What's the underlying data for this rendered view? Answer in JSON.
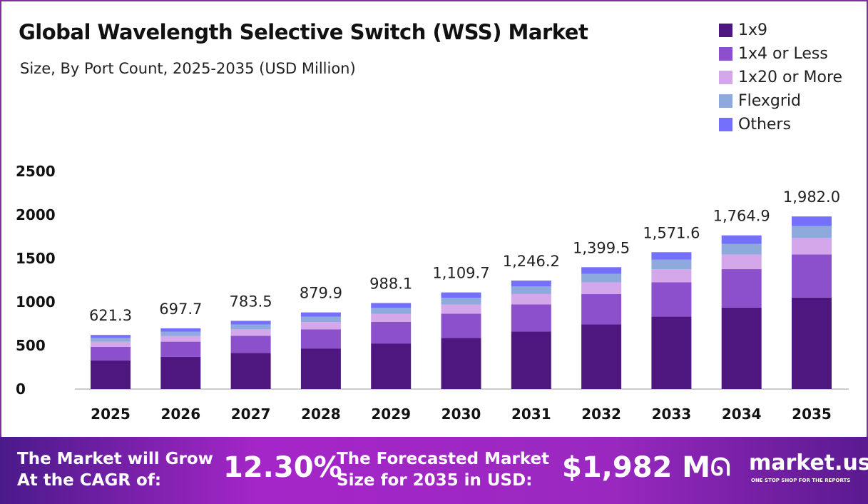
{
  "chart_data": {
    "type": "bar",
    "stacked": true,
    "title": "Global Wavelength Selective Switch (WSS) Market",
    "subtitle": "Size, By Port Count, 2025-2035 (USD Million)",
    "categories": [
      "2025",
      "2026",
      "2027",
      "2028",
      "2029",
      "2030",
      "2031",
      "2032",
      "2033",
      "2034",
      "2035"
    ],
    "totals": [
      "621.3",
      "697.7",
      "783.5",
      "879.9",
      "988.1",
      "1,109.7",
      "1,246.2",
      "1,399.5",
      "1,571.6",
      "1,764.9",
      "1,982.0"
    ],
    "series": [
      {
        "name": "1x9",
        "color": "#4e1780",
        "values": [
          329.3,
          369.8,
          415.3,
          466.3,
          523.7,
          588.1,
          660.5,
          741.7,
          833.0,
          935.4,
          1050.5
        ]
      },
      {
        "name": "1x4 or Less",
        "color": "#8c50cc",
        "values": [
          155.3,
          174.4,
          195.9,
          220.0,
          247.0,
          277.4,
          311.6,
          349.9,
          392.9,
          441.2,
          495.5
        ]
      },
      {
        "name": "1x20 or More",
        "color": "#d3a7ea",
        "values": [
          59.0,
          66.3,
          74.4,
          83.6,
          93.9,
          105.4,
          118.4,
          133.0,
          149.3,
          167.7,
          188.3
        ]
      },
      {
        "name": "Flexgrid",
        "color": "#8eaadc",
        "values": [
          43.5,
          48.8,
          54.8,
          61.6,
          69.2,
          77.7,
          87.2,
          98.0,
          110.0,
          123.5,
          138.7
        ]
      },
      {
        "name": "Others",
        "color": "#7470fb",
        "values": [
          34.2,
          38.4,
          43.1,
          48.4,
          54.3,
          61.1,
          68.5,
          76.9,
          86.4,
          97.1,
          109.0
        ]
      }
    ],
    "yticks": [
      "0",
      "500",
      "1000",
      "1500",
      "2000",
      "2500"
    ],
    "ylim": [
      0,
      2500
    ],
    "grid": false,
    "legend": "top-right"
  },
  "banner": {
    "cagr_label_1": "The Market will Grow",
    "cagr_label_2": "At the CAGR of:",
    "cagr_value": "12.30%",
    "forecast_label_1": "The Forecasted Market",
    "forecast_label_2": "Size for 2035 in USD:",
    "forecast_value": "$1,982 M",
    "brand": "market.us",
    "tagline": "ONE STOP SHOP FOR THE REPORTS"
  }
}
